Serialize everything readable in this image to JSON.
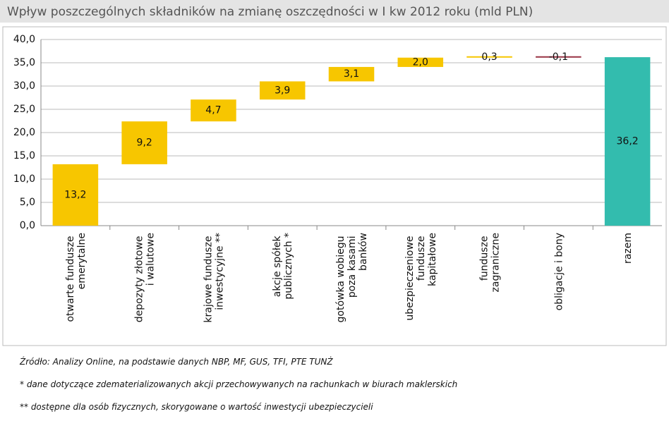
{
  "chart_data": {
    "type": "waterfall",
    "title": "Wpływ poszczególnych składników na zmianę oszczędności w I kw 2012 roku (mld PLN)",
    "categories": [
      "otwarte fundusze emerytalne",
      "depozyty złotowe i walutowe",
      "krajowe fundusze inwestycyjne **",
      "akcje spółek publicznych *",
      "gotówka wobiegu poza kasami banków",
      "ubezpieczeniowe fundusze kapitałowe",
      "fundusze zagraniczne",
      "obligacje i bony",
      "razem"
    ],
    "values": [
      13.2,
      9.2,
      4.7,
      3.9,
      3.1,
      2.0,
      0.3,
      -0.1,
      36.2
    ],
    "value_labels": [
      "13,2",
      "9,2",
      "4,7",
      "3,9",
      "3,1",
      "2,0",
      "0,3",
      "-0,1",
      "36,2"
    ],
    "measure": [
      "relative",
      "relative",
      "relative",
      "relative",
      "relative",
      "relative",
      "relative",
      "relative",
      "total"
    ],
    "colors": [
      "#f7c600",
      "#f7c600",
      "#f7c600",
      "#f7c600",
      "#f7c600",
      "#f7c600",
      "#f7c600",
      "#993344",
      "#33bcae"
    ],
    "ylim": [
      0,
      40
    ],
    "yticks": [
      {
        "value": 0,
        "label": "0,0"
      },
      {
        "value": 5,
        "label": "5,0"
      },
      {
        "value": 10,
        "label": "10,0"
      },
      {
        "value": 15,
        "label": "15,0"
      },
      {
        "value": 20,
        "label": "20,0"
      },
      {
        "value": 25,
        "label": "25,0"
      },
      {
        "value": 30,
        "label": "30,0"
      },
      {
        "value": 35,
        "label": "35,0"
      },
      {
        "value": 40,
        "label": "40,0"
      }
    ],
    "grid": true,
    "notes": [
      "Źródło: Analizy Online, na podstawie danych NBP, MF, GUS, TFI, PTE TUNŻ",
      "* dane dotyczące zdematerializowanych akcji przechowywanych na rachunkach w biurach maklerskich",
      "** dostępne dla osób fizycznych, skorygowane o wartość inwestycji ubezpieczycieli"
    ]
  }
}
